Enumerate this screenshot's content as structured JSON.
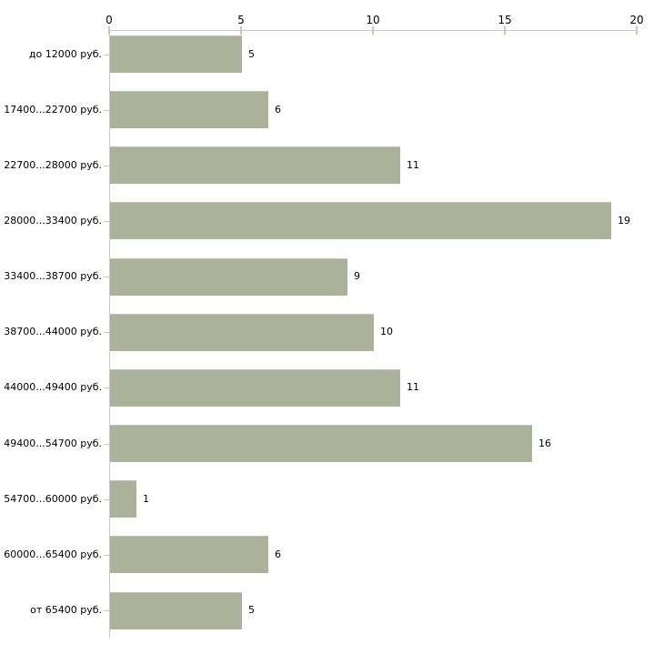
{
  "chart_data": {
    "type": "bar",
    "orientation": "horizontal",
    "title": "",
    "xlabel": "",
    "ylabel": "",
    "categories": [
      "до 12000 руб.",
      "17400...22700 руб.",
      "22700...28000 руб.",
      "28000...33400 руб.",
      "33400...38700 руб.",
      "38700...44000 руб.",
      "44000...49400 руб.",
      "49400...54700 руб.",
      "54700...60000 руб.",
      "60000...65400 руб.",
      "от 65400 руб."
    ],
    "values": [
      5,
      6,
      11,
      19,
      9,
      10,
      11,
      16,
      1,
      6,
      5
    ],
    "x_ticks": [
      "0",
      "5",
      "10",
      "15",
      "20"
    ],
    "x_tick_values": [
      0,
      5,
      10,
      15,
      20
    ],
    "xlim": [
      0,
      20
    ],
    "axis_position": "top",
    "grid": false,
    "legend": false,
    "data_labels": true,
    "colors": {
      "bar": "#acb199",
      "axis_line": "#c8c8c4",
      "tick_mark": "#c9cd9e",
      "text": "#000000",
      "background": "#ffffff"
    }
  }
}
